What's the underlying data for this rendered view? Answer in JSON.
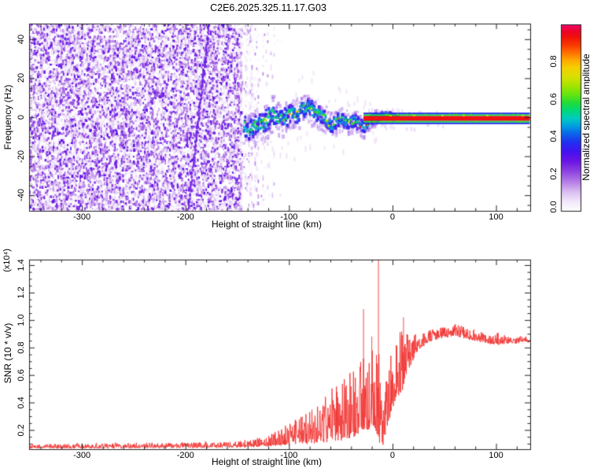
{
  "title": "C2E6.2025.325.11.17.G03",
  "chart_data": [
    {
      "type": "heatmap",
      "title": "C2E6.2025.325.11.17.G03",
      "xlabel": "Height of straight line (km)",
      "ylabel": "Frequency (Hz)",
      "xlim": [
        -351,
        133
      ],
      "ylim": [
        -48,
        48
      ],
      "x_tick_values": [
        -300,
        -200,
        -100,
        0,
        100
      ],
      "x_tick_labels": [
        "-300",
        "-200",
        "-100",
        "0",
        "100"
      ],
      "x_minor_step": 20,
      "y_tick_values": [
        40,
        20,
        0,
        -20,
        -40
      ],
      "y_tick_labels": [
        "40",
        "20",
        "0",
        "-20",
        "-40"
      ],
      "y_minor_step": 5,
      "grid": false,
      "colorbar": {
        "label": "Normalized spectral amplitude",
        "tick_values": [
          0.0,
          0.2,
          0.4,
          0.6,
          0.8
        ],
        "tick_labels": [
          "0.0",
          "0.2",
          "0.4",
          "0.6",
          "0.8"
        ],
        "range": [
          0,
          1
        ],
        "gradient_stops": [
          [
            0.0,
            "#ffffff"
          ],
          [
            0.05,
            "#f2e8fb"
          ],
          [
            0.1,
            "#dcc2f2"
          ],
          [
            0.16,
            "#b37ae6"
          ],
          [
            0.22,
            "#8a3ce0"
          ],
          [
            0.27,
            "#6a14e6"
          ],
          [
            0.32,
            "#4312f0"
          ],
          [
            0.37,
            "#2030f0"
          ],
          [
            0.42,
            "#0a6ae8"
          ],
          [
            0.46,
            "#00a2e0"
          ],
          [
            0.5,
            "#00ccbc"
          ],
          [
            0.54,
            "#00d878"
          ],
          [
            0.58,
            "#1edc3a"
          ],
          [
            0.62,
            "#5ee414"
          ],
          [
            0.67,
            "#a0e400"
          ],
          [
            0.72,
            "#d8e000"
          ],
          [
            0.77,
            "#f6cf00"
          ],
          [
            0.81,
            "#ffa800"
          ],
          [
            0.85,
            "#ff7000"
          ],
          [
            0.89,
            "#fa3a00"
          ],
          [
            0.93,
            "#f01408"
          ],
          [
            0.965,
            "#ec0428"
          ],
          [
            1.0,
            "#f2046a"
          ]
        ]
      },
      "features": {
        "noise_region_km": [
          -351,
          -147
        ],
        "noise_fade_km": [
          -147,
          -126
        ],
        "diagonal_streak_km_hz": [
          [
            -178,
            48
          ],
          [
            -198.5,
            -48
          ]
        ],
        "signal_band_km": [
          -144,
          4
        ],
        "signal_center_hz": 0,
        "band_halfwidth_hz_start": 5.5,
        "carrier_line_km": [
          -28,
          133
        ],
        "carrier_layer_halfwidths_hz": {
          "crimson": 1.2,
          "green": 2.0,
          "blue": 2.9
        }
      }
    },
    {
      "type": "line",
      "series_name": "SNR",
      "series_color": "#f23836",
      "xlabel": "Height of straight line (km)",
      "ylabel": "SNR (10 * v/v)",
      "y_scale_label": "(x10⁴)",
      "xlim": [
        -351,
        133
      ],
      "ylim": [
        0.06,
        1.44
      ],
      "x_tick_values": [
        -300,
        -200,
        -100,
        0,
        100
      ],
      "x_tick_labels": [
        "-300",
        "-200",
        "-100",
        "0",
        "100"
      ],
      "x_minor_step": 20,
      "y_tick_values": [
        0.2,
        0.4,
        0.6,
        0.8,
        1.0,
        1.2,
        1.4
      ],
      "y_tick_labels": [
        "0.2",
        "0.4",
        "0.6",
        "0.8",
        "1.0",
        "1.2",
        "1.4"
      ],
      "y_minor_step": 0.05,
      "grid": false,
      "envelope_keypoints_km_low_amp": [
        [
          -351,
          0.068,
          0.03
        ],
        [
          -300,
          0.068,
          0.032
        ],
        [
          -250,
          0.07,
          0.034
        ],
        [
          -200,
          0.072,
          0.036
        ],
        [
          -165,
          0.074,
          0.04
        ],
        [
          -140,
          0.076,
          0.05
        ],
        [
          -126,
          0.08,
          0.07
        ],
        [
          -114,
          0.085,
          0.1
        ],
        [
          -104,
          0.09,
          0.14
        ],
        [
          -94,
          0.095,
          0.18
        ],
        [
          -84,
          0.1,
          0.24
        ],
        [
          -74,
          0.105,
          0.3
        ],
        [
          -64,
          0.11,
          0.36
        ],
        [
          -54,
          0.12,
          0.42
        ],
        [
          -46,
          0.13,
          0.46
        ],
        [
          -38,
          0.15,
          0.5
        ],
        [
          -31,
          0.17,
          0.55
        ],
        [
          -25,
          0.2,
          0.6
        ],
        [
          -20,
          0.22,
          0.6
        ],
        [
          -16,
          0.18,
          0.55
        ],
        [
          -12,
          0.1,
          0.8
        ],
        [
          -9,
          0.08,
          0.35
        ],
        [
          -6,
          0.2,
          0.5
        ],
        [
          -2,
          0.3,
          0.5
        ],
        [
          2,
          0.4,
          0.45
        ],
        [
          6,
          0.45,
          0.45
        ],
        [
          10,
          0.5,
          0.45
        ],
        [
          14,
          0.6,
          0.3
        ],
        [
          18,
          0.68,
          0.22
        ],
        [
          23,
          0.75,
          0.15
        ],
        [
          28,
          0.8,
          0.12
        ],
        [
          35,
          0.84,
          0.09
        ],
        [
          45,
          0.87,
          0.08
        ],
        [
          55,
          0.88,
          0.08
        ],
        [
          63,
          0.88,
          0.09
        ],
        [
          70,
          0.87,
          0.08
        ],
        [
          78,
          0.85,
          0.08
        ],
        [
          86,
          0.84,
          0.07
        ],
        [
          94,
          0.83,
          0.06
        ],
        [
          102,
          0.82,
          0.09
        ],
        [
          110,
          0.83,
          0.05
        ],
        [
          118,
          0.83,
          0.05
        ],
        [
          126,
          0.84,
          0.04
        ],
        [
          133,
          0.84,
          0.04
        ]
      ],
      "spikes_km_value": [
        [
          -28,
          1.08
        ],
        [
          -20,
          0.88
        ],
        [
          -13.6,
          1.44
        ],
        [
          10.6,
          1.02
        ]
      ]
    }
  ]
}
